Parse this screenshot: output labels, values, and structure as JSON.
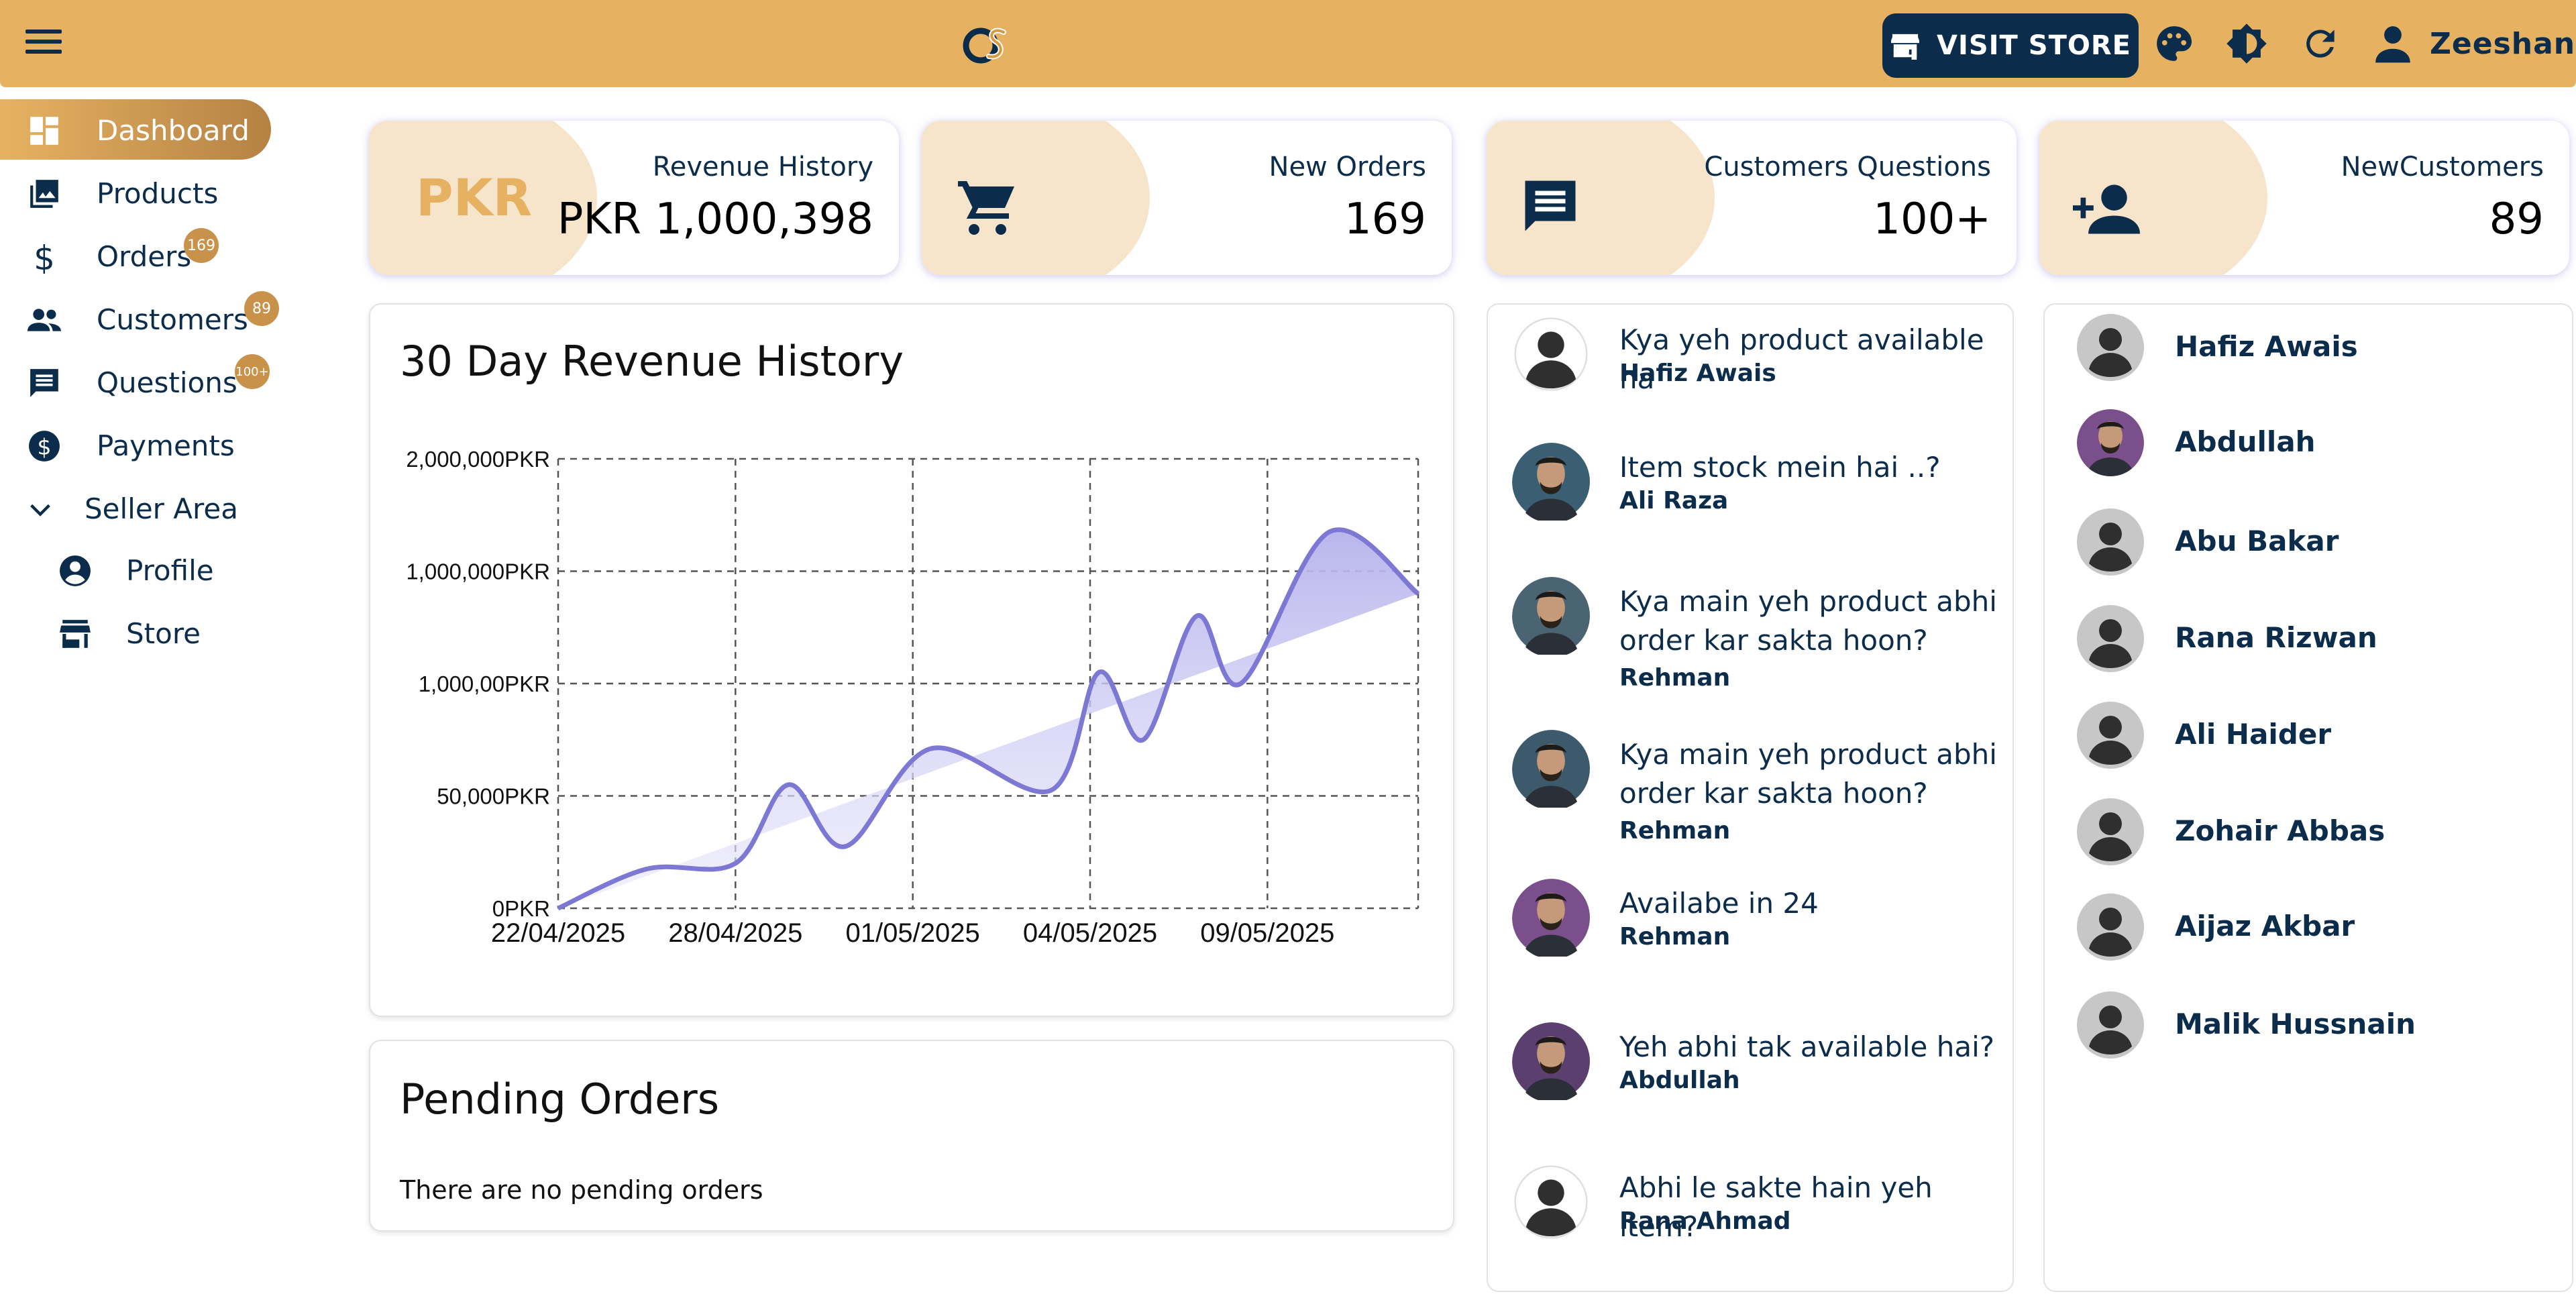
{
  "header": {
    "visit_store_label": "VISIT STORE",
    "user_name": "Zeeshan",
    "colors": {
      "bar": "#e6b262",
      "navy": "#0b2c4a"
    }
  },
  "sidebar": {
    "items": [
      {
        "label": "Dashboard",
        "icon": "dashboard-icon"
      },
      {
        "label": "Products",
        "icon": "image-gallery-icon"
      },
      {
        "label": "Orders",
        "icon": "dollar-icon",
        "badge": "169"
      },
      {
        "label": "Customers",
        "icon": "people-icon",
        "badge": "89"
      },
      {
        "label": "Questions",
        "icon": "comment-icon",
        "badge": "100+"
      },
      {
        "label": "Payments",
        "icon": "dollar-circle-icon"
      }
    ],
    "section": {
      "label": "Seller Area",
      "icon": "chevron-down-icon"
    },
    "sub_items": [
      {
        "label": "Profile",
        "icon": "account-circle-icon"
      },
      {
        "label": "Store",
        "icon": "store-icon"
      }
    ]
  },
  "stats": [
    {
      "title": "Revenue History",
      "value": "PKR 1,000,398",
      "badge_text": "PKR"
    },
    {
      "title": "New Orders",
      "value": "169",
      "icon": "cart-icon"
    },
    {
      "title": "Customers Questions",
      "value": "100+",
      "icon": "comment-icon"
    },
    {
      "title": "NewCustomers",
      "value": "89",
      "icon": "person-add-icon"
    }
  ],
  "revenue_panel": {
    "title": "30 Day Revenue History"
  },
  "chart_data": {
    "type": "area",
    "title": "30 Day Revenue History",
    "y_tick_labels": [
      "0PKR",
      "50,000PKR",
      "1,000,00PKR",
      "1,000,000PKR",
      "2,000,000PKR"
    ],
    "x_tick_labels": [
      "22/04/2025",
      "28/04/2025",
      "01/05/2025",
      "04/05/2025",
      "09/05/2025"
    ],
    "ylim": [
      0,
      4
    ],
    "x_range": [
      0,
      4.85
    ],
    "grid": true,
    "series": [
      {
        "x": [
          0,
          0.5,
          1.0,
          1.3,
          1.62,
          2.1,
          2.78,
          3.05,
          3.3,
          3.6,
          3.85,
          4.35,
          4.85
        ],
        "y": [
          0,
          0.35,
          0.4,
          1.1,
          0.55,
          1.42,
          1.05,
          2.1,
          1.5,
          2.6,
          2.0,
          3.35,
          2.8
        ]
      }
    ],
    "colors": {
      "line": "#7c78d4",
      "fill": "#c9c6f0"
    }
  },
  "pending_panel": {
    "title": "Pending Orders",
    "empty_text": "There are no pending orders"
  },
  "questions": [
    {
      "text": "Kya yeh product available ha",
      "author": "Hafiz Awais",
      "avatar": "default-avatar"
    },
    {
      "text": "Item stock mein hai ..?",
      "author": "Ali Raza",
      "avatar": "photo"
    },
    {
      "text": "Kya main yeh product abhi order kar sakta hoon?",
      "author": "Rehman",
      "avatar": "photo"
    },
    {
      "text": "Kya main yeh product abhi order kar sakta hoon?",
      "author": "Rehman",
      "avatar": "photo"
    },
    {
      "text": "Availabe in 24",
      "author": "Rehman",
      "avatar": "photo"
    },
    {
      "text": "Yeh abhi tak available hai?",
      "author": "Abdullah",
      "avatar": "photo"
    },
    {
      "text": "Abhi le sakte hain yeh item?",
      "author": "Rana Ahmad",
      "avatar": "default-avatar"
    }
  ],
  "customers": [
    {
      "name": "Hafiz Awais",
      "avatar": "default-avatar"
    },
    {
      "name": "Abdullah",
      "avatar": "photo"
    },
    {
      "name": "Abu Bakar",
      "avatar": "default-avatar"
    },
    {
      "name": "Rana Rizwan",
      "avatar": "default-avatar"
    },
    {
      "name": "Ali Haider",
      "avatar": "default-avatar"
    },
    {
      "name": "Zohair Abbas",
      "avatar": "default-avatar"
    },
    {
      "name": "Aijaz Akbar",
      "avatar": "default-avatar"
    },
    {
      "name": "Malik Hussnain",
      "avatar": "default-avatar"
    }
  ]
}
